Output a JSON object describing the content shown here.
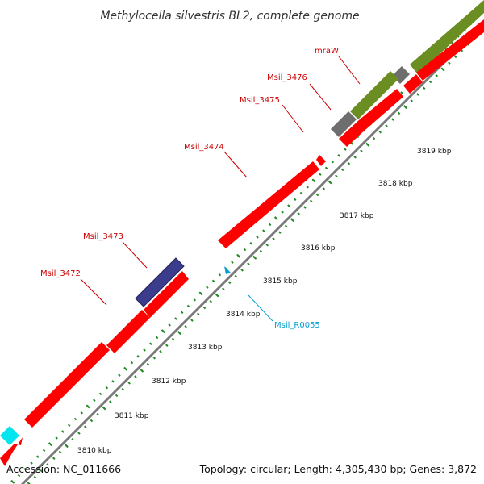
{
  "title": "Methylocella silvestris BL2, complete genome",
  "accession": "Accession: NC_011666",
  "summary": "Topology: circular; Length: 4,305,430 bp; Genes: 3,872",
  "colors": {
    "backbone": "#8c8c8c",
    "cds": "#ff0000",
    "rna": "#00b4dc",
    "green_feature": "#6b8e23",
    "gray_feature": "#707070",
    "blue_feature": "#3c3c8c",
    "cyan_feature": "#00ffff",
    "tick": "#228b22",
    "label_red": "#cc0000",
    "label_cyan": "#00a0d0"
  },
  "kbp_ticks": [
    "3810 kbp",
    "3811 kbp",
    "3812 kbp",
    "3813 kbp",
    "3814 kbp",
    "3815 kbp",
    "3816 kbp",
    "3817 kbp",
    "3818 kbp",
    "3819 kbp"
  ],
  "gene_labels": [
    {
      "text": "mraW",
      "color": "red"
    },
    {
      "text": "Msil_3476",
      "color": "red"
    },
    {
      "text": "Msil_3475",
      "color": "red"
    },
    {
      "text": "Msil_3474",
      "color": "red"
    },
    {
      "text": "Msil_3473",
      "color": "red"
    },
    {
      "text": "Msil_3472",
      "color": "red"
    },
    {
      "text": "Msil_R0055",
      "color": "cyan"
    }
  ]
}
